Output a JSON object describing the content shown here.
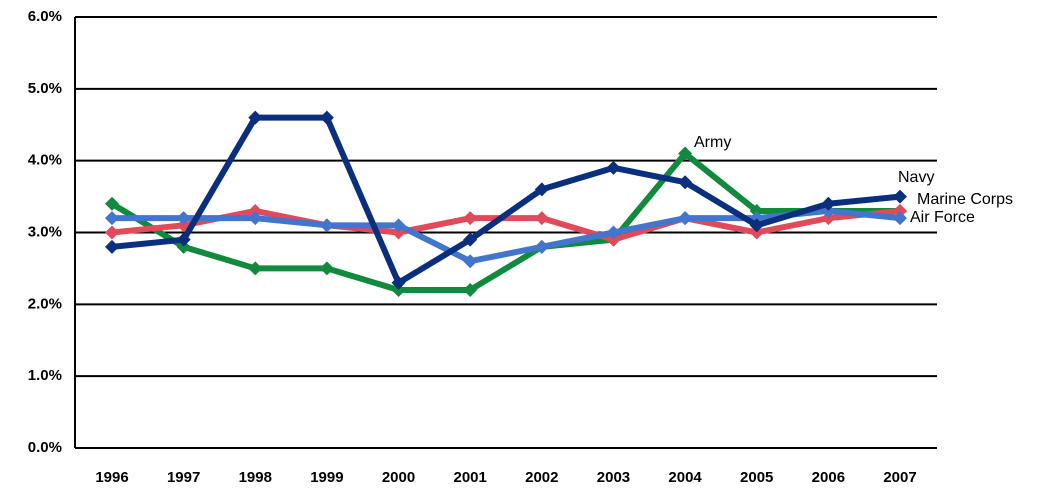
{
  "chart_data": {
    "type": "line",
    "categories": [
      "1996",
      "1997",
      "1998",
      "1999",
      "2000",
      "2001",
      "2002",
      "2003",
      "2004",
      "2005",
      "2006",
      "2007"
    ],
    "series": [
      {
        "name": "Army",
        "color": "#128a3e",
        "values": [
          3.4,
          2.8,
          2.5,
          2.5,
          2.2,
          2.2,
          2.8,
          2.9,
          4.1,
          3.3,
          3.3,
          3.3
        ]
      },
      {
        "name": "Marine Corps",
        "color": "#e04a5b",
        "values": [
          3.0,
          3.1,
          3.3,
          3.1,
          3.0,
          3.2,
          3.2,
          2.9,
          3.2,
          3.0,
          3.2,
          3.3
        ]
      },
      {
        "name": "Air Force",
        "color": "#4275cc",
        "values": [
          3.2,
          3.2,
          3.2,
          3.1,
          3.1,
          2.6,
          2.8,
          3.0,
          3.2,
          3.2,
          3.3,
          3.2
        ]
      },
      {
        "name": "Navy",
        "color": "#0b2f7f",
        "values": [
          2.8,
          2.9,
          4.6,
          4.6,
          2.3,
          2.9,
          3.6,
          3.9,
          3.7,
          3.1,
          3.4,
          3.5
        ]
      }
    ],
    "ylim": [
      0,
      6
    ],
    "yticks": [
      {
        "value": 0,
        "label": "0.0%"
      },
      {
        "value": 1,
        "label": "1.0%"
      },
      {
        "value": 2,
        "label": "2.0%"
      },
      {
        "value": 3,
        "label": "3.0%"
      },
      {
        "value": 4,
        "label": "4.0%"
      },
      {
        "value": 5,
        "label": "5.0%"
      },
      {
        "value": 6,
        "label": "6.0%"
      }
    ],
    "grid": true
  }
}
